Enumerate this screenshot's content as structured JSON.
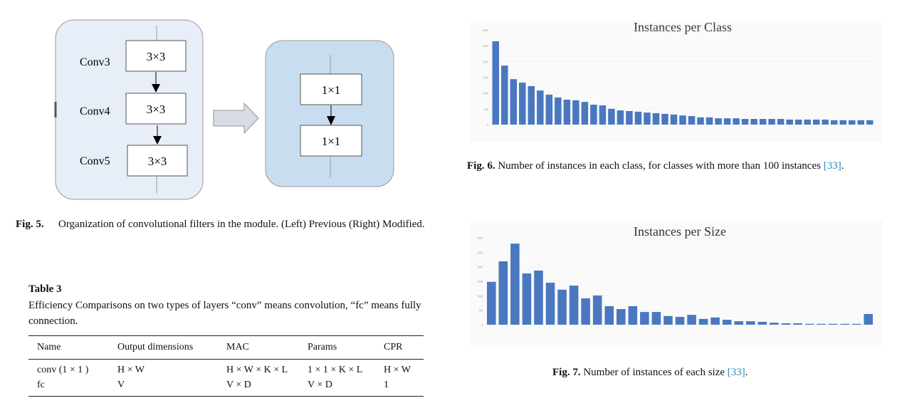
{
  "figure5": {
    "layer_labels": [
      "Conv3",
      "Conv4",
      "Conv5"
    ],
    "left_boxes": [
      "3×3",
      "3×3",
      "3×3"
    ],
    "right_boxes": [
      "1×1",
      "1×1"
    ],
    "caption_label": "Fig. 5.",
    "caption": "Organization of convolutional filters in the module. (Left) Previous (Right) Modified."
  },
  "table": {
    "label": "Table 3",
    "caption": "Efficiency Comparisons on two types of layers “conv” means convolution, “fc” means fully connection.",
    "columns": [
      "Name",
      "Output dimensions",
      "MAC",
      "Params",
      "CPR"
    ],
    "rows": [
      [
        "conv (1 × 1 )",
        "H × W",
        "H × W × K × L",
        "1 × 1 × K × L",
        "H × W"
      ],
      [
        "fc",
        "V",
        "V × D",
        "V × D",
        "1"
      ]
    ]
  },
  "chart_data": [
    {
      "type": "bar",
      "title": "Instances per Class",
      "color": "#4a78c0",
      "grid": true,
      "categories": [
        null,
        null,
        null,
        null,
        null,
        null,
        null,
        null,
        null,
        null,
        null,
        null,
        null,
        null,
        null,
        null,
        null,
        null,
        null,
        null,
        null,
        null,
        null,
        null,
        null,
        null,
        null,
        null,
        null,
        null,
        null,
        null,
        null,
        null,
        null,
        null,
        null,
        null,
        null,
        null,
        null,
        null,
        null
      ],
      "values": [
        2640,
        1870,
        1440,
        1330,
        1220,
        1080,
        950,
        860,
        790,
        770,
        720,
        630,
        610,
        500,
        450,
        430,
        410,
        380,
        360,
        340,
        320,
        290,
        270,
        230,
        230,
        200,
        200,
        200,
        180,
        180,
        180,
        180,
        180,
        160,
        160,
        160,
        160,
        160,
        140,
        140,
        140,
        140,
        140
      ],
      "ylim": [
        0,
        3000
      ],
      "yticks": [
        0,
        500,
        1000,
        1500,
        2000,
        2500,
        3000
      ],
      "caption_label": "Fig. 6.",
      "caption": "Number of instances in each class, for classes with more than 100 instances",
      "caption_ref": "[33]"
    },
    {
      "type": "bar",
      "title": "Instances per Size",
      "color": "#4a78c0",
      "grid": true,
      "categories": [
        null,
        null,
        null,
        null,
        null,
        null,
        null,
        null,
        null,
        null,
        null,
        null,
        null,
        null,
        null,
        null,
        null,
        null,
        null,
        null,
        null,
        null,
        null,
        null,
        null,
        null,
        null,
        null,
        null,
        null,
        null,
        null,
        null
      ],
      "values": [
        1480,
        2190,
        2800,
        1770,
        1870,
        1450,
        1210,
        1350,
        910,
        1010,
        640,
        540,
        640,
        440,
        440,
        300,
        270,
        340,
        200,
        250,
        170,
        120,
        120,
        100,
        70,
        50,
        50,
        30,
        30,
        30,
        30,
        30,
        370
      ],
      "ylim": [
        0,
        3000
      ],
      "yticks": [
        0,
        500,
        1000,
        1500,
        2000,
        2500,
        3000
      ],
      "caption_label": "Fig. 7.",
      "caption": "Number of instances of each size",
      "caption_ref": "[33]"
    }
  ]
}
